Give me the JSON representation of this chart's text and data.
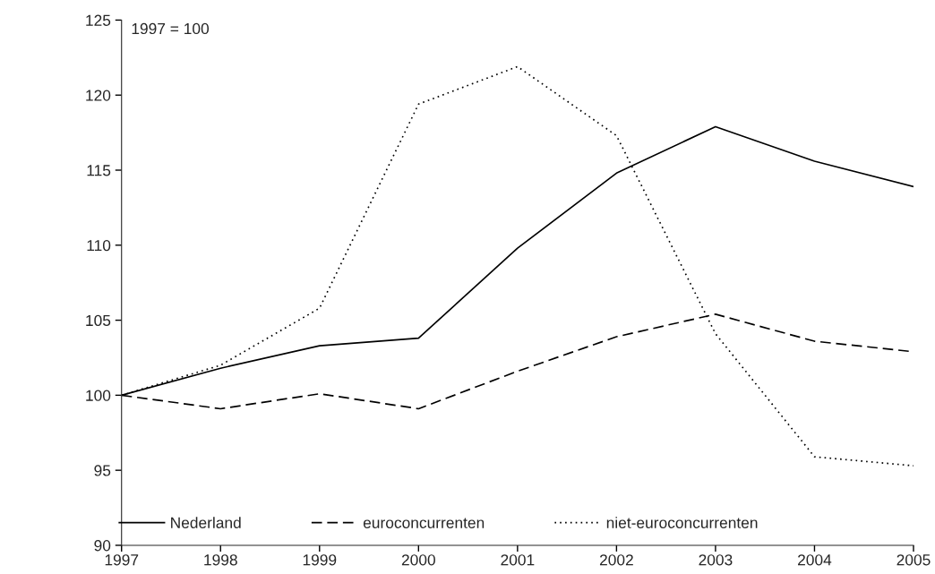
{
  "chart_data": {
    "type": "line",
    "x": [
      1997,
      1998,
      1999,
      2000,
      2001,
      2002,
      2003,
      2004,
      2005
    ],
    "series": [
      {
        "name": "Nederland",
        "color": "#000000",
        "line_style": "solid",
        "values": [
          100,
          101.8,
          103.3,
          103.8,
          109.8,
          114.8,
          117.9,
          115.6,
          113.9
        ]
      },
      {
        "name": "euroconcurrenten",
        "color": "#000000",
        "line_style": "dashed",
        "values": [
          100,
          99.1,
          100.1,
          99.1,
          101.6,
          103.9,
          105.4,
          103.6,
          102.9
        ]
      },
      {
        "name": "niet-euroconcurrenten",
        "color": "#000000",
        "line_style": "dotted",
        "values": [
          100,
          102.0,
          105.8,
          119.4,
          121.9,
          117.3,
          104.1,
          95.9,
          95.3
        ]
      }
    ],
    "annotations": [
      "1997 = 100"
    ],
    "xlim": [
      1997,
      2005
    ],
    "xticks": [
      1997,
      1998,
      1999,
      2000,
      2001,
      2002,
      2003,
      2004,
      2005
    ],
    "ylim": [
      90,
      125
    ],
    "yticks": [
      90,
      95,
      100,
      105,
      110,
      115,
      120,
      125
    ],
    "grid": false,
    "legend": "bottom",
    "marker": "none"
  }
}
